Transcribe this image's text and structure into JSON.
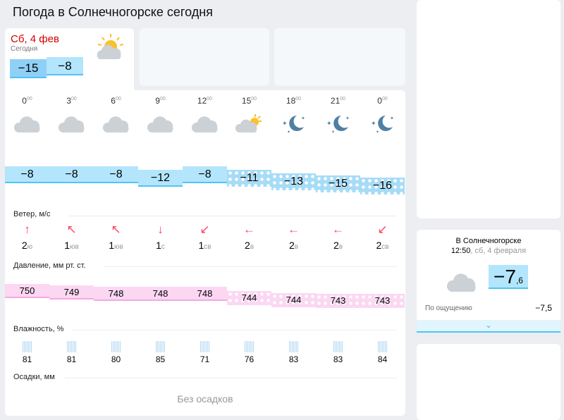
{
  "title": "Погода в Солнечногорске сегодня",
  "today": {
    "date": "Сб, 4 фев",
    "label": "Сегодня",
    "temp_min": "−15",
    "temp_max": "−8",
    "icon": "partly-cloudy-icon"
  },
  "hours": [
    {
      "h": "0",
      "t": "−8",
      "icon": "cloudy-icon",
      "arrow": "↑",
      "ws": "2",
      "wd": "ю",
      "p": "750",
      "hum": "81"
    },
    {
      "h": "3",
      "t": "−8",
      "icon": "cloudy-icon",
      "arrow": "↖",
      "ws": "1",
      "wd": "юв",
      "p": "749",
      "hum": "81"
    },
    {
      "h": "6",
      "t": "−8",
      "icon": "cloudy-icon",
      "arrow": "↖",
      "ws": "1",
      "wd": "юв",
      "p": "748",
      "hum": "80"
    },
    {
      "h": "9",
      "t": "−12",
      "icon": "cloudy-icon",
      "arrow": "↓",
      "ws": "1",
      "wd": "с",
      "p": "748",
      "hum": "85"
    },
    {
      "h": "12",
      "t": "−8",
      "icon": "cloudy-icon",
      "arrow": "↙",
      "ws": "1",
      "wd": "св",
      "p": "748",
      "hum": "71"
    },
    {
      "h": "15",
      "t": "−11",
      "icon": "partly-cloudy-icon",
      "arrow": "←",
      "ws": "2",
      "wd": "в",
      "p": "744",
      "hum": "76"
    },
    {
      "h": "18",
      "t": "−13",
      "icon": "night-clear-icon",
      "arrow": "←",
      "ws": "2",
      "wd": "в",
      "p": "744",
      "hum": "83"
    },
    {
      "h": "21",
      "t": "−15",
      "icon": "night-clear-icon",
      "arrow": "←",
      "ws": "2",
      "wd": "в",
      "p": "743",
      "hum": "83"
    },
    {
      "h": "0",
      "t": "−16",
      "icon": "night-clear-icon",
      "arrow": "↙",
      "ws": "2",
      "wd": "св",
      "p": "743",
      "hum": "84"
    }
  ],
  "minutes_sup": "00",
  "sections": {
    "wind": "Ветер, м/с",
    "pressure": "Давление, мм рт. ст.",
    "humidity": "Влажность, %",
    "precip": "Осадки, мм",
    "no_precip": "Без осадков"
  },
  "now": {
    "city": "В Солнечногорске",
    "time": "12:50",
    "date": ", сб, 4 февраля",
    "temp_int": "−7",
    "temp_dec": ",6",
    "feels_label": "По ощущению",
    "feels": "−7,5"
  }
}
